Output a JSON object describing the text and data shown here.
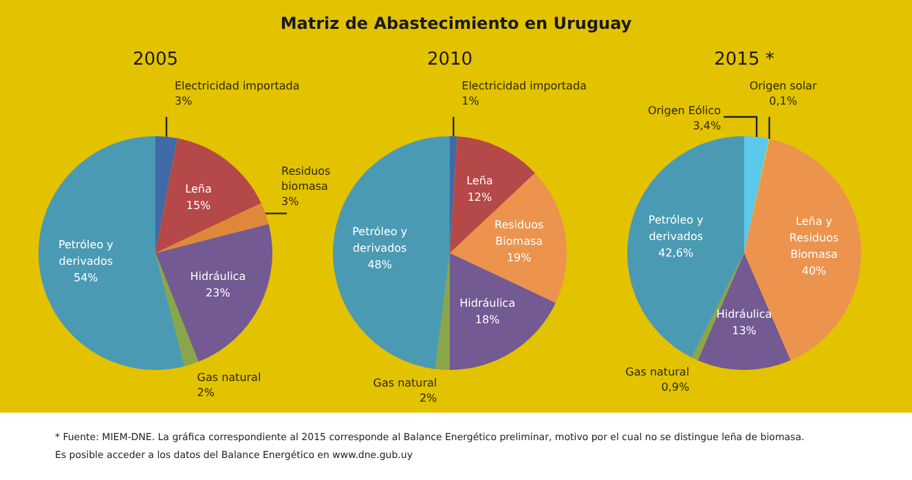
{
  "chart_data": [
    {
      "type": "pie",
      "title": "2005",
      "annotations": [
        "Matriz de Abastecimiento en Uruguay"
      ],
      "legend": false,
      "categories": [
        "Electricidad importada",
        "Leña",
        "Residuos biomasa",
        "Hidráulica",
        "Gas natural",
        "Petróleo y derivados"
      ],
      "values": [
        3,
        15,
        3,
        23,
        2,
        54
      ],
      "value_labels": [
        "3%",
        "15%",
        "3%",
        "23%",
        "2%",
        "54%"
      ],
      "colors": [
        "#3f6aa6",
        "#b54848",
        "#e0883a",
        "#735a92",
        "#8aa64a",
        "#4a9ab4"
      ]
    },
    {
      "type": "pie",
      "title": "2010",
      "legend": false,
      "categories": [
        "Electricidad importada",
        "Leña",
        "Residuos Biomasa",
        "Hidráulica",
        "Gas natural",
        "Petróleo y derivados"
      ],
      "values": [
        1,
        12,
        19,
        18,
        2,
        48
      ],
      "value_labels": [
        "1%",
        "12%",
        "19%",
        "18%",
        "2%",
        "48%"
      ],
      "colors": [
        "#3f6aa6",
        "#b54848",
        "#ec934e",
        "#735a92",
        "#8aa64a",
        "#4a9ab4"
      ]
    },
    {
      "type": "pie",
      "title": "2015 *",
      "legend": false,
      "annotations": [
        "* Fuente: MIEM-DNE. La gráfica correspondiente al 2015 corresponde al Balance Energético preliminar, motivo por el cual no se distingue leña de biomasa.",
        "Es posible acceder a los datos del Balance Energético en www.dne.gub.uy"
      ],
      "categories": [
        "Origen Eólico",
        "Origen solar",
        "Leña y Residuos Biomasa",
        "Hidráulica",
        "Gas natural",
        "Petróleo y derivados"
      ],
      "values": [
        3.4,
        0.1,
        40,
        13,
        0.9,
        42.6
      ],
      "value_labels": [
        "3,4%",
        "0,1%",
        "40%",
        "13%",
        "0,9%",
        "42,6%"
      ],
      "colors": [
        "#5cc8ec",
        "#e8d23c",
        "#ec934e",
        "#735a92",
        "#8aa64a",
        "#4a9ab4"
      ]
    }
  ]
}
